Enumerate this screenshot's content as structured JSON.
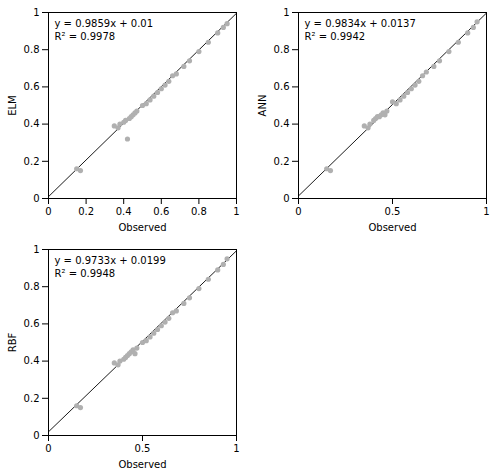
{
  "chart_data": [
    {
      "type": "scatter",
      "xlabel": "Observed",
      "ylabel": "ELM",
      "annotations": [
        "y = 0.9859x + 0.01",
        "R² = 0.9978"
      ],
      "xlim": [
        0,
        1
      ],
      "ylim": [
        0,
        1
      ],
      "xticks": [
        0,
        0.2,
        0.4,
        0.6,
        0.8,
        1
      ],
      "yticks": [
        0,
        0.2,
        0.4,
        0.6,
        0.8,
        1
      ],
      "grid": false,
      "series": [
        {
          "type": "line",
          "color": "#1a1a1a",
          "x": [
            0,
            1
          ],
          "values": [
            0.01,
            0.9959
          ]
        },
        {
          "type": "scatter",
          "color": "#b0b0b0",
          "x": [
            0.15,
            0.17,
            0.35,
            0.37,
            0.38,
            0.4,
            0.41,
            0.42,
            0.43,
            0.44,
            0.45,
            0.46,
            0.47,
            0.5,
            0.52,
            0.54,
            0.56,
            0.58,
            0.6,
            0.62,
            0.64,
            0.66,
            0.68,
            0.72,
            0.75,
            0.8,
            0.85,
            0.9,
            0.93,
            0.95
          ],
          "values": [
            0.16,
            0.15,
            0.39,
            0.38,
            0.4,
            0.41,
            0.42,
            0.32,
            0.43,
            0.44,
            0.45,
            0.46,
            0.47,
            0.5,
            0.51,
            0.53,
            0.55,
            0.57,
            0.59,
            0.61,
            0.63,
            0.66,
            0.67,
            0.71,
            0.74,
            0.79,
            0.84,
            0.89,
            0.92,
            0.94
          ]
        }
      ]
    },
    {
      "type": "scatter",
      "xlabel": "Observed",
      "ylabel": "ANN",
      "annotations": [
        "y = 0.9834x + 0.0137",
        "R² = 0.9942"
      ],
      "xlim": [
        0,
        1
      ],
      "ylim": [
        0,
        1
      ],
      "xticks": [
        0,
        0.5,
        1
      ],
      "yticks": [
        0,
        0.2,
        0.4,
        0.6,
        0.8,
        1
      ],
      "grid": false,
      "series": [
        {
          "type": "line",
          "color": "#1a1a1a",
          "x": [
            0,
            1
          ],
          "values": [
            0.0137,
            0.9971
          ]
        },
        {
          "type": "scatter",
          "color": "#b0b0b0",
          "x": [
            0.15,
            0.17,
            0.35,
            0.37,
            0.38,
            0.4,
            0.41,
            0.42,
            0.43,
            0.44,
            0.45,
            0.46,
            0.47,
            0.5,
            0.52,
            0.54,
            0.56,
            0.58,
            0.6,
            0.62,
            0.64,
            0.66,
            0.68,
            0.72,
            0.75,
            0.8,
            0.85,
            0.9,
            0.93,
            0.95
          ],
          "values": [
            0.16,
            0.15,
            0.39,
            0.38,
            0.4,
            0.42,
            0.43,
            0.44,
            0.44,
            0.45,
            0.46,
            0.45,
            0.47,
            0.52,
            0.51,
            0.53,
            0.55,
            0.57,
            0.59,
            0.61,
            0.63,
            0.66,
            0.68,
            0.71,
            0.74,
            0.79,
            0.84,
            0.89,
            0.92,
            0.95
          ]
        }
      ]
    },
    {
      "type": "scatter",
      "xlabel": "Observed",
      "ylabel": "RBF",
      "annotations": [
        "y = 0.9733x + 0.0199",
        "R² = 0.9948"
      ],
      "xlim": [
        0,
        1
      ],
      "ylim": [
        0,
        1
      ],
      "xticks": [
        0,
        0.5,
        1
      ],
      "yticks": [
        0,
        0.2,
        0.4,
        0.6,
        0.8,
        1
      ],
      "grid": false,
      "series": [
        {
          "type": "line",
          "color": "#1a1a1a",
          "x": [
            0,
            1
          ],
          "values": [
            0.0199,
            0.9932
          ]
        },
        {
          "type": "scatter",
          "color": "#b0b0b0",
          "x": [
            0.15,
            0.17,
            0.35,
            0.37,
            0.38,
            0.4,
            0.41,
            0.42,
            0.43,
            0.44,
            0.45,
            0.46,
            0.47,
            0.5,
            0.52,
            0.54,
            0.56,
            0.58,
            0.6,
            0.62,
            0.64,
            0.66,
            0.68,
            0.72,
            0.75,
            0.8,
            0.85,
            0.9,
            0.93,
            0.95
          ],
          "values": [
            0.16,
            0.15,
            0.39,
            0.38,
            0.4,
            0.41,
            0.42,
            0.43,
            0.44,
            0.45,
            0.46,
            0.44,
            0.47,
            0.5,
            0.51,
            0.53,
            0.55,
            0.57,
            0.59,
            0.61,
            0.63,
            0.66,
            0.67,
            0.71,
            0.74,
            0.79,
            0.84,
            0.89,
            0.92,
            0.95
          ]
        }
      ]
    }
  ]
}
